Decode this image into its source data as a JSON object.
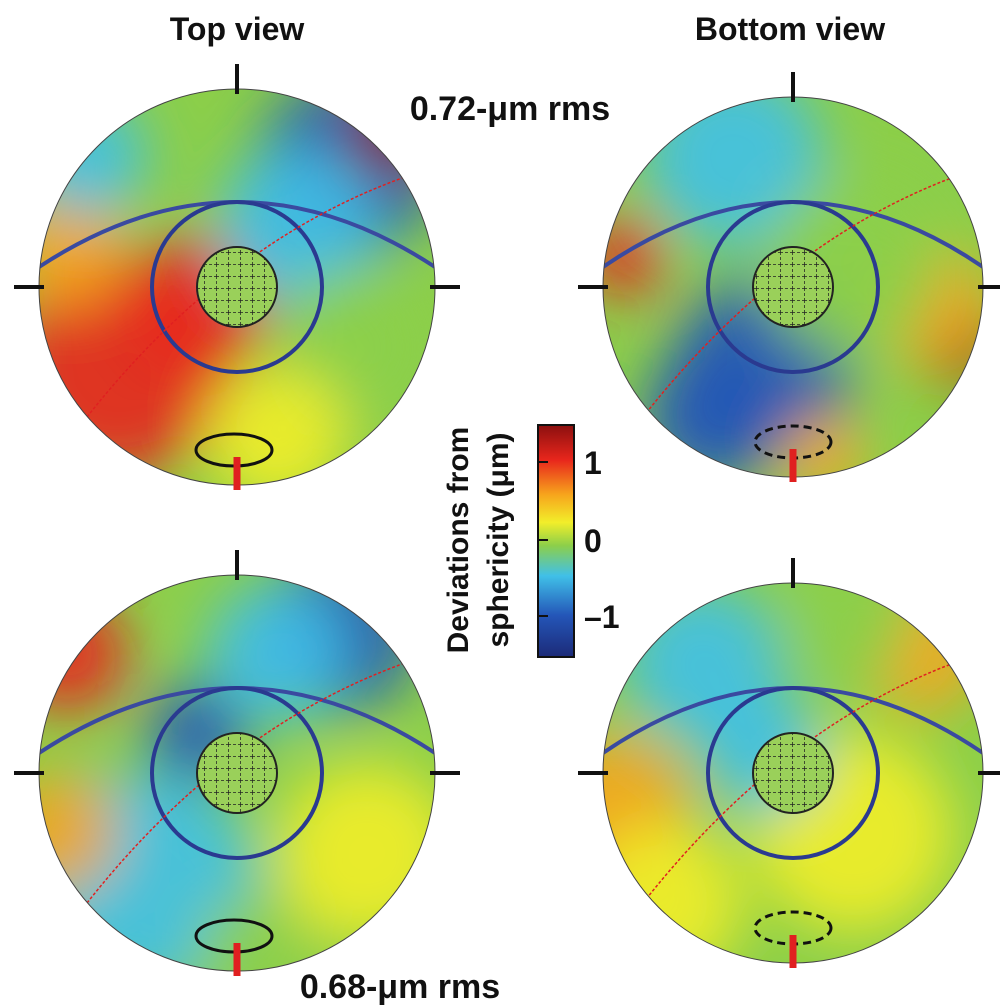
{
  "header": {
    "left_title": "Top view",
    "right_title": "Bottom view"
  },
  "annotations": {
    "top_rms": "0.72-μm rms",
    "bottom_rms": "0.68-μm rms"
  },
  "colorbar": {
    "label_line1": "Deviations from",
    "label_line2": "sphericity (μm)",
    "ticks": [
      "1",
      "0",
      "–1"
    ]
  }
}
